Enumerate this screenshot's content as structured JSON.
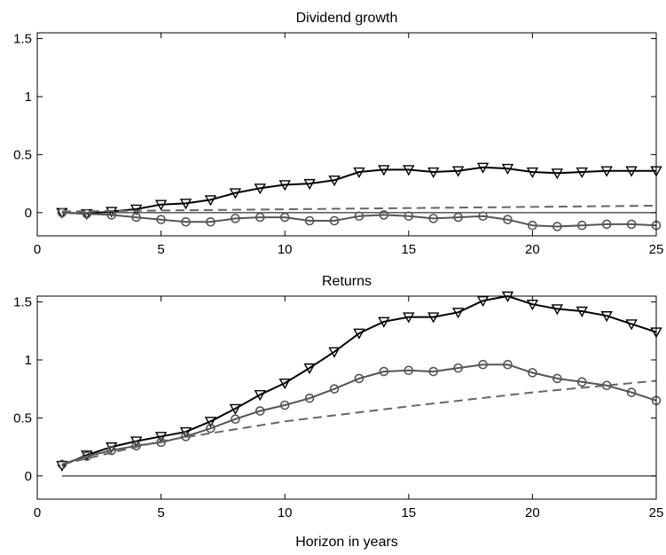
{
  "chart_data": [
    {
      "type": "line",
      "title": "Dividend growth",
      "xlabel": "",
      "ylabel": "",
      "xlim": [
        0,
        25
      ],
      "ylim": [
        -0.2,
        1.55
      ],
      "xticks": [
        0,
        5,
        10,
        15,
        20,
        25
      ],
      "yticks": [
        0,
        0.5,
        1,
        1.5
      ],
      "xtick_labels": [
        "0",
        "5",
        "10",
        "15",
        "20",
        "25"
      ],
      "ytick_labels": [
        "0",
        "0.5",
        "1",
        "1.5"
      ],
      "grid": false,
      "legend": "none",
      "series": [
        {
          "marker": "triangle-down",
          "style": "solid",
          "color": "#000000",
          "x": [
            1,
            2,
            3,
            4,
            5,
            6,
            7,
            8,
            9,
            10,
            11,
            12,
            13,
            14,
            15,
            16,
            17,
            18,
            19,
            20,
            21,
            22,
            23,
            24,
            25
          ],
          "y": [
            0.0,
            -0.01,
            0.01,
            0.03,
            0.07,
            0.08,
            0.11,
            0.17,
            0.21,
            0.24,
            0.25,
            0.28,
            0.35,
            0.37,
            0.37,
            0.35,
            0.36,
            0.39,
            0.38,
            0.35,
            0.34,
            0.35,
            0.36,
            0.36,
            0.36
          ]
        },
        {
          "marker": "circle",
          "style": "solid",
          "color": "#555555",
          "x": [
            1,
            2,
            3,
            4,
            5,
            6,
            7,
            8,
            9,
            10,
            11,
            12,
            13,
            14,
            15,
            16,
            17,
            18,
            19,
            20,
            21,
            22,
            23,
            24,
            25
          ],
          "y": [
            0.0,
            -0.01,
            -0.02,
            -0.04,
            -0.06,
            -0.08,
            -0.08,
            -0.05,
            -0.04,
            -0.04,
            -0.07,
            -0.07,
            -0.03,
            -0.02,
            -0.03,
            -0.05,
            -0.04,
            -0.03,
            -0.06,
            -0.11,
            -0.12,
            -0.11,
            -0.1,
            -0.1,
            -0.11
          ]
        },
        {
          "marker": "none",
          "style": "dashed",
          "color": "#666666",
          "x": [
            1,
            25
          ],
          "y": [
            0.01,
            0.06
          ]
        }
      ],
      "reference_line": {
        "y": 0
      }
    },
    {
      "type": "line",
      "title": "Returns",
      "xlabel": "Horizon in years",
      "ylabel": "",
      "xlim": [
        0,
        25
      ],
      "ylim": [
        -0.2,
        1.55
      ],
      "xticks": [
        0,
        5,
        10,
        15,
        20,
        25
      ],
      "yticks": [
        0,
        0.5,
        1,
        1.5
      ],
      "xtick_labels": [
        "0",
        "5",
        "10",
        "15",
        "20",
        "25"
      ],
      "ytick_labels": [
        "0",
        "0.5",
        "1",
        "1.5"
      ],
      "grid": false,
      "legend": "none",
      "series": [
        {
          "marker": "triangle-down",
          "style": "solid",
          "color": "#000000",
          "x": [
            1,
            2,
            3,
            4,
            5,
            6,
            7,
            8,
            9,
            10,
            11,
            12,
            13,
            14,
            15,
            16,
            17,
            18,
            19,
            20,
            21,
            22,
            23,
            24,
            25
          ],
          "y": [
            0.09,
            0.18,
            0.25,
            0.3,
            0.34,
            0.38,
            0.47,
            0.58,
            0.7,
            0.8,
            0.93,
            1.07,
            1.23,
            1.33,
            1.37,
            1.37,
            1.41,
            1.51,
            1.55,
            1.48,
            1.44,
            1.42,
            1.38,
            1.31,
            1.24
          ]
        },
        {
          "marker": "circle",
          "style": "solid",
          "color": "#555555",
          "x": [
            1,
            2,
            3,
            4,
            5,
            6,
            7,
            8,
            9,
            10,
            11,
            12,
            13,
            14,
            15,
            16,
            17,
            18,
            19,
            20,
            21,
            22,
            23,
            24,
            25
          ],
          "y": [
            0.1,
            0.17,
            0.22,
            0.26,
            0.29,
            0.34,
            0.41,
            0.49,
            0.56,
            0.61,
            0.67,
            0.75,
            0.84,
            0.9,
            0.91,
            0.9,
            0.93,
            0.96,
            0.96,
            0.89,
            0.84,
            0.81,
            0.78,
            0.72,
            0.65
          ]
        },
        {
          "marker": "none",
          "style": "dashed",
          "color": "#666666",
          "x": [
            1,
            5,
            10,
            15,
            20,
            25
          ],
          "y": [
            0.1,
            0.3,
            0.47,
            0.6,
            0.72,
            0.82
          ]
        }
      ],
      "reference_line": {
        "y": 0
      }
    }
  ]
}
